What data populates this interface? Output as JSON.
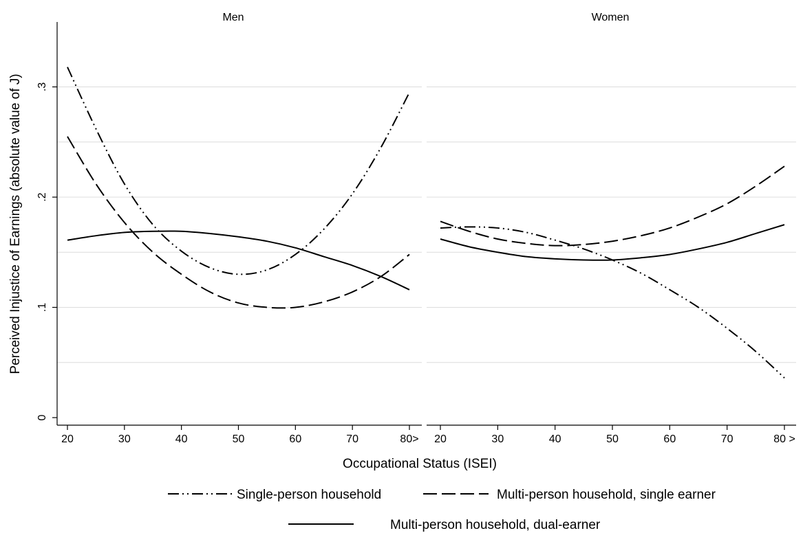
{
  "chart_data": {
    "type": "line",
    "xlabel": "Occupational Status (ISEI)",
    "ylabel": "Perceived Injustice of Earnings (absolute value of J)",
    "ylim": [
      0,
      0.36
    ],
    "grid": true,
    "legend_placement": "bottom",
    "y_ticks": [
      {
        "value": 0,
        "label": "0"
      },
      {
        "value": 0.1,
        "label": ".1"
      },
      {
        "value": 0.2,
        "label": ".2"
      },
      {
        "value": 0.3,
        "label": ".3"
      }
    ],
    "series_styles": [
      {
        "key": "single",
        "label": "Single-person household",
        "dash": "16 5 2 5 2 5",
        "color": "#000000"
      },
      {
        "key": "multi_single",
        "label": "Multi-person household, single earner",
        "dash": "20 7",
        "color": "#000000"
      },
      {
        "key": "dual",
        "label": "Multi-person household, dual-earner",
        "dash": "",
        "color": "#000000"
      }
    ],
    "panels": [
      {
        "title": "Men",
        "xlim": [
          18,
          82
        ],
        "x_ticks": [
          {
            "value": 20,
            "label": "20"
          },
          {
            "value": 30,
            "label": "30"
          },
          {
            "value": 40,
            "label": "40"
          },
          {
            "value": 50,
            "label": "50"
          },
          {
            "value": 60,
            "label": "60"
          },
          {
            "value": 70,
            "label": "70"
          },
          {
            "value": 80,
            "label": "80>"
          }
        ],
        "series": [
          {
            "key": "single",
            "x": [
              20,
              25,
              30,
              35,
              40,
              45,
              50,
              55,
              60,
              65,
              70,
              75,
              80
            ],
            "y": [
              0.318,
              0.262,
              0.212,
              0.175,
              0.151,
              0.136,
              0.13,
              0.134,
              0.148,
              0.171,
              0.203,
              0.245,
              0.295
            ]
          },
          {
            "key": "multi_single",
            "x": [
              20,
              25,
              30,
              35,
              40,
              45,
              50,
              55,
              60,
              65,
              70,
              75,
              80
            ],
            "y": [
              0.255,
              0.212,
              0.177,
              0.15,
              0.13,
              0.114,
              0.104,
              0.1,
              0.1,
              0.105,
              0.114,
              0.128,
              0.148
            ]
          },
          {
            "key": "dual",
            "x": [
              20,
              25,
              30,
              35,
              40,
              45,
              50,
              55,
              60,
              65,
              70,
              75,
              80
            ],
            "y": [
              0.161,
              0.165,
              0.168,
              0.169,
              0.169,
              0.167,
              0.164,
              0.16,
              0.154,
              0.146,
              0.138,
              0.128,
              0.116
            ]
          }
        ]
      },
      {
        "title": "Women",
        "xlim": [
          18,
          82
        ],
        "x_ticks": [
          {
            "value": 20,
            "label": "20"
          },
          {
            "value": 30,
            "label": "30"
          },
          {
            "value": 40,
            "label": "40"
          },
          {
            "value": 50,
            "label": "50"
          },
          {
            "value": 60,
            "label": "60"
          },
          {
            "value": 70,
            "label": "70"
          },
          {
            "value": 80,
            "label": "80 >"
          }
        ],
        "series": [
          {
            "key": "single",
            "x": [
              20,
              25,
              30,
              35,
              40,
              45,
              50,
              55,
              60,
              65,
              70,
              75,
              80
            ],
            "y": [
              0.172,
              0.173,
              0.172,
              0.168,
              0.161,
              0.153,
              0.143,
              0.131,
              0.116,
              0.1,
              0.081,
              0.06,
              0.036
            ]
          },
          {
            "key": "multi_single",
            "x": [
              20,
              25,
              30,
              35,
              40,
              45,
              50,
              55,
              60,
              65,
              70,
              75,
              80
            ],
            "y": [
              0.178,
              0.169,
              0.162,
              0.158,
              0.156,
              0.157,
              0.16,
              0.165,
              0.172,
              0.182,
              0.194,
              0.21,
              0.228
            ]
          },
          {
            "key": "dual",
            "x": [
              20,
              25,
              30,
              35,
              40,
              45,
              50,
              55,
              60,
              65,
              70,
              75,
              80
            ],
            "y": [
              0.162,
              0.155,
              0.15,
              0.146,
              0.144,
              0.143,
              0.143,
              0.145,
              0.148,
              0.153,
              0.159,
              0.167,
              0.175
            ]
          }
        ]
      }
    ]
  }
}
